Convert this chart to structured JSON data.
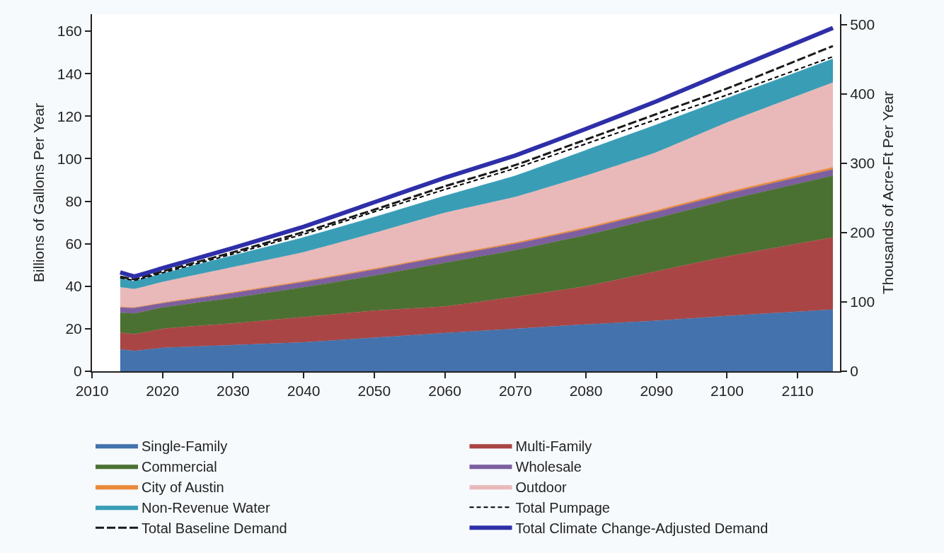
{
  "chart_data": {
    "type": "area",
    "stacked": true,
    "ylabel": "Billions of Gallons Per Year",
    "y2label": "Thousands of Acre-Ft Per Year",
    "x": [
      2014,
      2016,
      2020,
      2030,
      2040,
      2050,
      2060,
      2070,
      2080,
      2090,
      2100,
      2115
    ],
    "xlim": [
      2010,
      2116
    ],
    "xticks": [
      2010,
      2020,
      2030,
      2040,
      2050,
      2060,
      2070,
      2080,
      2090,
      2100,
      2110
    ],
    "ylim": [
      0,
      168
    ],
    "yticks": [
      0,
      20,
      40,
      60,
      80,
      100,
      120,
      140,
      160
    ],
    "y2lim": [
      0,
      515
    ],
    "y2ticks": [
      0,
      100,
      200,
      300,
      400,
      500
    ],
    "legend": "bottom",
    "series": [
      {
        "name": "Single-Family",
        "color": "#4372ad",
        "values": [
          10.3,
          9.6,
          11,
          12.3,
          13.6,
          15.8,
          18,
          20,
          22,
          23.8,
          26,
          29
        ]
      },
      {
        "name": "Multi-Family",
        "color": "#a94645",
        "values": [
          7.9,
          7.9,
          9,
          10.2,
          11.9,
          12.7,
          12.5,
          15,
          18,
          23.2,
          28,
          34
        ]
      },
      {
        "name": "Commercial",
        "color": "#4b7132",
        "values": [
          9.3,
          9.7,
          10,
          12,
          14,
          16.5,
          20.5,
          22,
          24,
          25,
          26.5,
          29
        ]
      },
      {
        "name": "Wholesale",
        "color": "#7d5fa0",
        "values": [
          2.5,
          2.6,
          2,
          2.3,
          2.5,
          2.8,
          3,
          3,
          3,
          3,
          3,
          3
        ]
      },
      {
        "name": "City of Austin",
        "color": "#e9893a",
        "values": [
          0.3,
          0.3,
          0.3,
          0.4,
          0.5,
          0.5,
          0.5,
          0.6,
          0.7,
          0.7,
          0.8,
          1
        ]
      },
      {
        "name": "Outdoor",
        "color": "#e9b9b9",
        "values": [
          9.2,
          8.6,
          9.7,
          11.8,
          13.5,
          16.7,
          20,
          21.4,
          24.3,
          27.3,
          32.7,
          39.8
        ]
      },
      {
        "name": "Non-Revenue Water",
        "color": "#3a9db6",
        "values": [
          4.2,
          3.8,
          4,
          5.5,
          7,
          7.5,
          8,
          10,
          12,
          13,
          11.5,
          11.2
        ]
      },
      {
        "name": "Total Pumpage",
        "type": "line",
        "line_style": "dashed",
        "color": "#000000",
        "values": [
          44,
          42.8,
          46.3,
          55.2,
          64.5,
          75,
          85.5,
          95.5,
          107,
          118.5,
          130,
          148
        ]
      },
      {
        "name": "Total Baseline Demand",
        "type": "line",
        "line_style": "dashed",
        "color": "#1a1a1a",
        "values": [
          44.5,
          43.3,
          47,
          56,
          65.5,
          76,
          87,
          97,
          109,
          121,
          133,
          153
        ]
      },
      {
        "name": "Total Climate Change-Adjusted Demand",
        "type": "line",
        "line_style": "solid",
        "color": "#2e2fa8",
        "values": [
          46.5,
          44.7,
          48.5,
          58,
          68,
          79.5,
          91,
          101.5,
          114,
          127,
          141,
          161.5
        ]
      }
    ]
  }
}
